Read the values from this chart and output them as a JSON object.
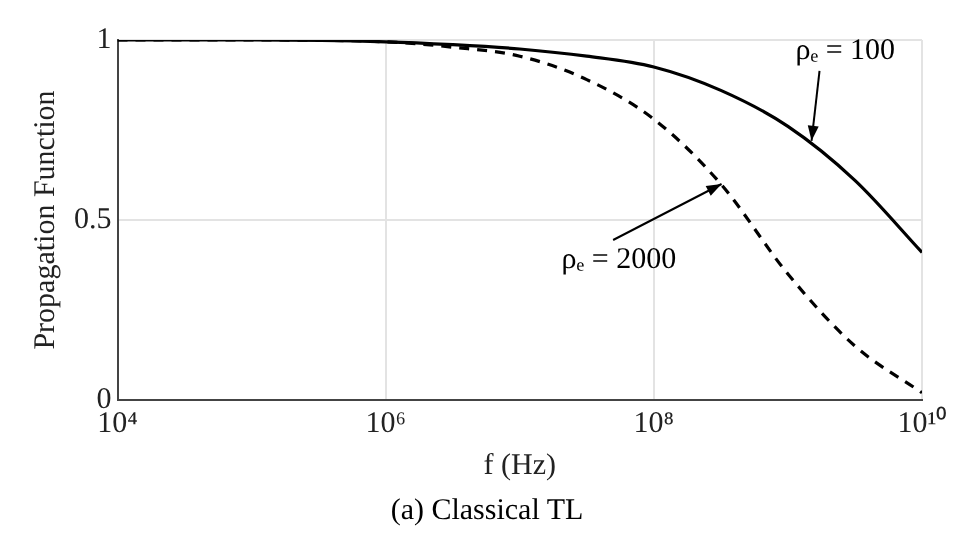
{
  "chart_data": {
    "type": "line",
    "xlabel": "f (Hz)",
    "ylabel": "Propagation Function",
    "log": "x",
    "xlim": [
      10000,
      10000000000
    ],
    "xticks": [
      {
        "value": 10000,
        "label": "10⁴"
      },
      {
        "value": 1000000,
        "label": "10⁶"
      },
      {
        "value": 100000000,
        "label": "10⁸"
      },
      {
        "value": 10000000000,
        "label": "10¹⁰"
      }
    ],
    "ylim": [
      0,
      1
    ],
    "yticks": [
      0,
      0.5,
      1
    ],
    "grid": true,
    "legend": false,
    "marker": "none",
    "x": [
      10000,
      100000,
      1000000,
      3160000,
      10000000,
      31600000,
      100000000,
      316000000,
      1000000000,
      3160000000,
      10000000000
    ],
    "series": [
      {
        "color": "#000000",
        "line_style": "solid",
        "values": [
          1,
          1,
          0.995,
          0.987,
          0.975,
          0.955,
          0.925,
          0.86,
          0.76,
          0.61,
          0.41
        ]
      },
      {
        "color": "#000000",
        "line_style": "dashed",
        "values": [
          1,
          1,
          0.995,
          0.98,
          0.955,
          0.89,
          0.78,
          0.6,
          0.35,
          0.15,
          0.02
        ]
      }
    ],
    "annotations": [
      {
        "text": "ρₑ = 100",
        "x": 1500000000,
        "y": 0.72
      },
      {
        "text": "ρₑ = 2000",
        "x": 320000000,
        "y": 0.6
      },
      "(a) Classical TL"
    ]
  }
}
